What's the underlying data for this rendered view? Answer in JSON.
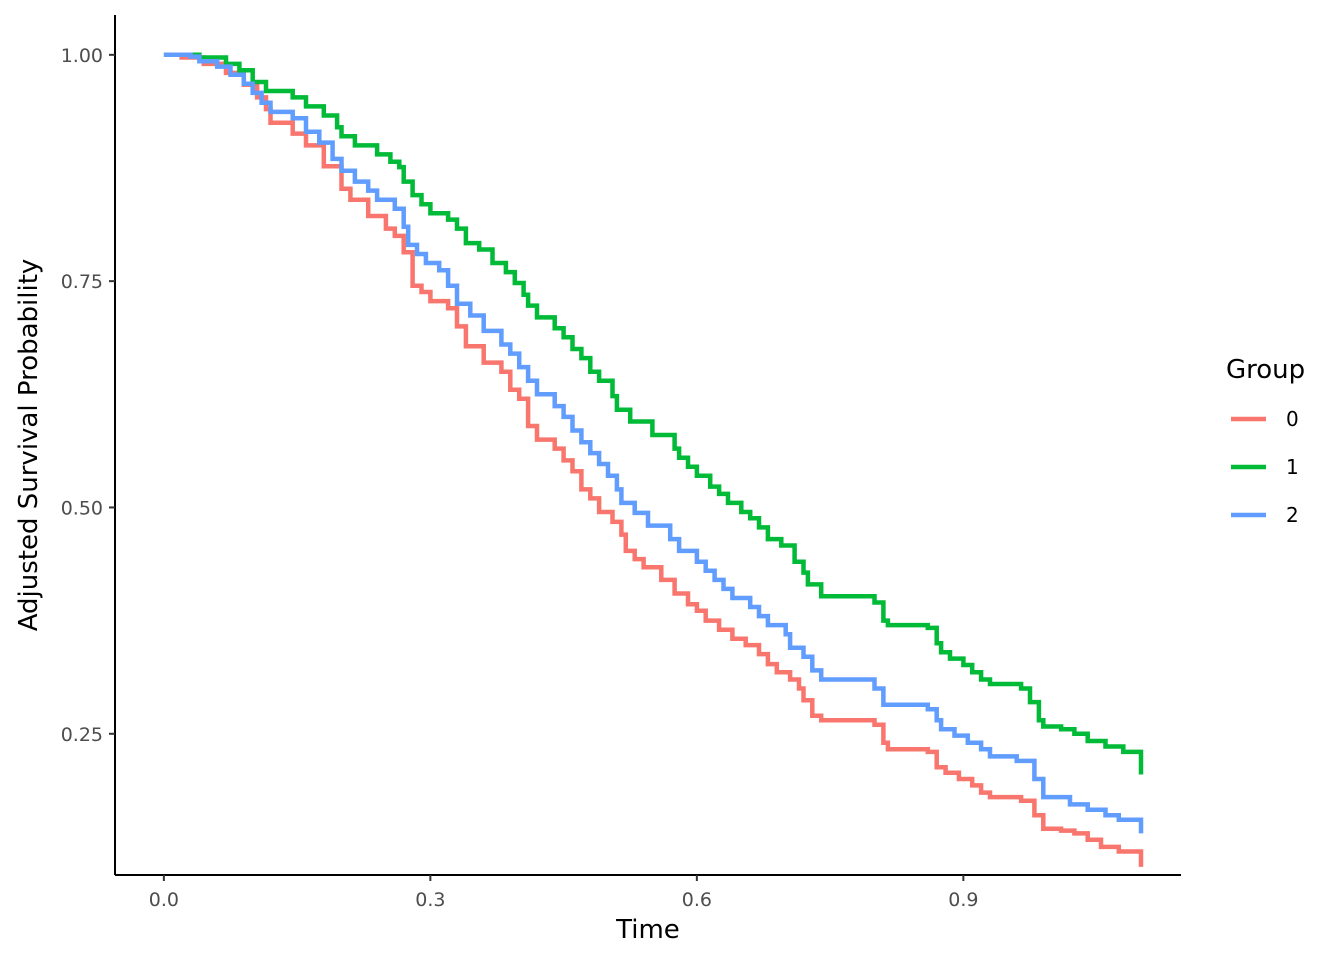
{
  "chart_data": {
    "type": "line",
    "step": true,
    "title": "",
    "xlabel": "Time",
    "ylabel": "Adjusted Survival Probability",
    "xlim": [
      -0.055,
      1.145
    ],
    "ylim": [
      0.094,
      1.044
    ],
    "x_ticks": [
      0.0,
      0.3,
      0.6,
      0.9
    ],
    "x_tick_labels": [
      "0.0",
      "0.3",
      "0.6",
      "0.9"
    ],
    "y_ticks": [
      0.25,
      0.5,
      0.75,
      1.0
    ],
    "y_tick_labels": [
      "0.25",
      "0.50",
      "0.75",
      "1.00"
    ],
    "grid": false,
    "legend": {
      "title": "Group",
      "position": "right"
    },
    "series": [
      {
        "name": "0",
        "color": "#F8766D",
        "points": [
          [
            0.0,
            1.0
          ],
          [
            0.02,
            0.997
          ],
          [
            0.045,
            0.99
          ],
          [
            0.07,
            0.98
          ],
          [
            0.09,
            0.967
          ],
          [
            0.105,
            0.953
          ],
          [
            0.115,
            0.94
          ],
          [
            0.12,
            0.925
          ],
          [
            0.145,
            0.913
          ],
          [
            0.16,
            0.9
          ],
          [
            0.18,
            0.877
          ],
          [
            0.2,
            0.852
          ],
          [
            0.21,
            0.84
          ],
          [
            0.23,
            0.822
          ],
          [
            0.25,
            0.808
          ],
          [
            0.26,
            0.8
          ],
          [
            0.27,
            0.782
          ],
          [
            0.28,
            0.745
          ],
          [
            0.29,
            0.738
          ],
          [
            0.3,
            0.728
          ],
          [
            0.32,
            0.72
          ],
          [
            0.33,
            0.7
          ],
          [
            0.34,
            0.678
          ],
          [
            0.36,
            0.66
          ],
          [
            0.38,
            0.65
          ],
          [
            0.39,
            0.63
          ],
          [
            0.4,
            0.62
          ],
          [
            0.41,
            0.59
          ],
          [
            0.42,
            0.575
          ],
          [
            0.44,
            0.565
          ],
          [
            0.45,
            0.552
          ],
          [
            0.46,
            0.54
          ],
          [
            0.47,
            0.52
          ],
          [
            0.48,
            0.51
          ],
          [
            0.49,
            0.495
          ],
          [
            0.505,
            0.484
          ],
          [
            0.515,
            0.47
          ],
          [
            0.52,
            0.452
          ],
          [
            0.53,
            0.443
          ],
          [
            0.54,
            0.434
          ],
          [
            0.56,
            0.42
          ],
          [
            0.575,
            0.405
          ],
          [
            0.59,
            0.393
          ],
          [
            0.6,
            0.386
          ],
          [
            0.61,
            0.375
          ],
          [
            0.625,
            0.365
          ],
          [
            0.64,
            0.355
          ],
          [
            0.655,
            0.348
          ],
          [
            0.67,
            0.338
          ],
          [
            0.68,
            0.327
          ],
          [
            0.69,
            0.318
          ],
          [
            0.705,
            0.31
          ],
          [
            0.715,
            0.3
          ],
          [
            0.72,
            0.287
          ],
          [
            0.73,
            0.27
          ],
          [
            0.74,
            0.265
          ],
          [
            0.8,
            0.26
          ],
          [
            0.81,
            0.24
          ],
          [
            0.815,
            0.233
          ],
          [
            0.86,
            0.23
          ],
          [
            0.87,
            0.213
          ],
          [
            0.88,
            0.207
          ],
          [
            0.895,
            0.2
          ],
          [
            0.91,
            0.193
          ],
          [
            0.92,
            0.185
          ],
          [
            0.93,
            0.18
          ],
          [
            0.965,
            0.176
          ],
          [
            0.98,
            0.16
          ],
          [
            0.99,
            0.145
          ],
          [
            1.01,
            0.143
          ],
          [
            1.025,
            0.14
          ],
          [
            1.04,
            0.133
          ],
          [
            1.055,
            0.125
          ],
          [
            1.075,
            0.12
          ],
          [
            1.1,
            0.113
          ],
          [
            1.1,
            0.103
          ]
        ]
      },
      {
        "name": "1",
        "color": "#00BA38",
        "points": [
          [
            0.0,
            1.0
          ],
          [
            0.04,
            0.997
          ],
          [
            0.07,
            0.99
          ],
          [
            0.085,
            0.983
          ],
          [
            0.1,
            0.97
          ],
          [
            0.115,
            0.96
          ],
          [
            0.145,
            0.953
          ],
          [
            0.16,
            0.943
          ],
          [
            0.18,
            0.933
          ],
          [
            0.195,
            0.92
          ],
          [
            0.2,
            0.91
          ],
          [
            0.215,
            0.9
          ],
          [
            0.24,
            0.89
          ],
          [
            0.255,
            0.882
          ],
          [
            0.265,
            0.876
          ],
          [
            0.27,
            0.86
          ],
          [
            0.28,
            0.845
          ],
          [
            0.29,
            0.835
          ],
          [
            0.3,
            0.825
          ],
          [
            0.32,
            0.818
          ],
          [
            0.33,
            0.808
          ],
          [
            0.34,
            0.792
          ],
          [
            0.355,
            0.785
          ],
          [
            0.37,
            0.77
          ],
          [
            0.385,
            0.76
          ],
          [
            0.395,
            0.748
          ],
          [
            0.405,
            0.735
          ],
          [
            0.41,
            0.723
          ],
          [
            0.42,
            0.71
          ],
          [
            0.44,
            0.698
          ],
          [
            0.45,
            0.688
          ],
          [
            0.46,
            0.675
          ],
          [
            0.47,
            0.665
          ],
          [
            0.48,
            0.65
          ],
          [
            0.49,
            0.64
          ],
          [
            0.505,
            0.623
          ],
          [
            0.51,
            0.608
          ],
          [
            0.525,
            0.595
          ],
          [
            0.55,
            0.58
          ],
          [
            0.575,
            0.565
          ],
          [
            0.58,
            0.555
          ],
          [
            0.59,
            0.545
          ],
          [
            0.6,
            0.535
          ],
          [
            0.615,
            0.523
          ],
          [
            0.625,
            0.515
          ],
          [
            0.635,
            0.505
          ],
          [
            0.65,
            0.495
          ],
          [
            0.66,
            0.488
          ],
          [
            0.67,
            0.478
          ],
          [
            0.68,
            0.465
          ],
          [
            0.695,
            0.458
          ],
          [
            0.71,
            0.44
          ],
          [
            0.72,
            0.428
          ],
          [
            0.725,
            0.415
          ],
          [
            0.74,
            0.402
          ],
          [
            0.8,
            0.395
          ],
          [
            0.81,
            0.375
          ],
          [
            0.815,
            0.37
          ],
          [
            0.86,
            0.367
          ],
          [
            0.87,
            0.35
          ],
          [
            0.875,
            0.34
          ],
          [
            0.885,
            0.333
          ],
          [
            0.9,
            0.326
          ],
          [
            0.91,
            0.318
          ],
          [
            0.92,
            0.31
          ],
          [
            0.93,
            0.305
          ],
          [
            0.965,
            0.3
          ],
          [
            0.975,
            0.285
          ],
          [
            0.985,
            0.265
          ],
          [
            0.99,
            0.258
          ],
          [
            1.01,
            0.255
          ],
          [
            1.025,
            0.25
          ],
          [
            1.04,
            0.242
          ],
          [
            1.06,
            0.236
          ],
          [
            1.08,
            0.23
          ],
          [
            1.1,
            0.218
          ],
          [
            1.1,
            0.205
          ]
        ]
      },
      {
        "name": "2",
        "color": "#619CFF",
        "points": [
          [
            0.0,
            1.0
          ],
          [
            0.03,
            0.998
          ],
          [
            0.04,
            0.993
          ],
          [
            0.06,
            0.987
          ],
          [
            0.075,
            0.978
          ],
          [
            0.09,
            0.968
          ],
          [
            0.1,
            0.958
          ],
          [
            0.11,
            0.947
          ],
          [
            0.12,
            0.937
          ],
          [
            0.145,
            0.93
          ],
          [
            0.16,
            0.915
          ],
          [
            0.175,
            0.903
          ],
          [
            0.19,
            0.885
          ],
          [
            0.2,
            0.872
          ],
          [
            0.215,
            0.86
          ],
          [
            0.23,
            0.85
          ],
          [
            0.24,
            0.84
          ],
          [
            0.26,
            0.83
          ],
          [
            0.27,
            0.81
          ],
          [
            0.275,
            0.79
          ],
          [
            0.285,
            0.78
          ],
          [
            0.295,
            0.77
          ],
          [
            0.31,
            0.762
          ],
          [
            0.32,
            0.745
          ],
          [
            0.33,
            0.725
          ],
          [
            0.345,
            0.712
          ],
          [
            0.36,
            0.695
          ],
          [
            0.38,
            0.68
          ],
          [
            0.39,
            0.67
          ],
          [
            0.4,
            0.655
          ],
          [
            0.41,
            0.64
          ],
          [
            0.42,
            0.625
          ],
          [
            0.44,
            0.612
          ],
          [
            0.45,
            0.6
          ],
          [
            0.46,
            0.585
          ],
          [
            0.47,
            0.572
          ],
          [
            0.48,
            0.56
          ],
          [
            0.49,
            0.548
          ],
          [
            0.5,
            0.535
          ],
          [
            0.51,
            0.52
          ],
          [
            0.515,
            0.505
          ],
          [
            0.53,
            0.494
          ],
          [
            0.545,
            0.48
          ],
          [
            0.57,
            0.465
          ],
          [
            0.58,
            0.452
          ],
          [
            0.6,
            0.44
          ],
          [
            0.61,
            0.43
          ],
          [
            0.62,
            0.42
          ],
          [
            0.63,
            0.41
          ],
          [
            0.64,
            0.4
          ],
          [
            0.66,
            0.39
          ],
          [
            0.67,
            0.38
          ],
          [
            0.68,
            0.37
          ],
          [
            0.7,
            0.36
          ],
          [
            0.705,
            0.345
          ],
          [
            0.72,
            0.335
          ],
          [
            0.73,
            0.32
          ],
          [
            0.74,
            0.31
          ],
          [
            0.8,
            0.3
          ],
          [
            0.81,
            0.282
          ],
          [
            0.86,
            0.277
          ],
          [
            0.87,
            0.265
          ],
          [
            0.875,
            0.255
          ],
          [
            0.89,
            0.248
          ],
          [
            0.905,
            0.24
          ],
          [
            0.92,
            0.233
          ],
          [
            0.93,
            0.225
          ],
          [
            0.96,
            0.22
          ],
          [
            0.98,
            0.2
          ],
          [
            0.99,
            0.18
          ],
          [
            1.02,
            0.172
          ],
          [
            1.04,
            0.166
          ],
          [
            1.06,
            0.16
          ],
          [
            1.075,
            0.155
          ],
          [
            1.1,
            0.148
          ],
          [
            1.1,
            0.14
          ]
        ]
      }
    ]
  }
}
